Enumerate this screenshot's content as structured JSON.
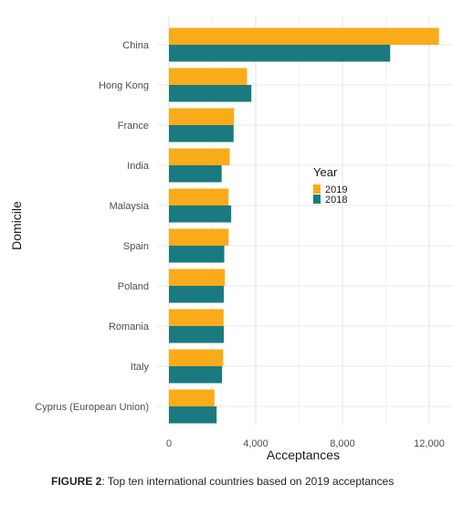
{
  "chart_data": {
    "type": "bar",
    "orientation": "horizontal",
    "categories": [
      "China",
      "Hong Kong",
      "France",
      "India",
      "Malaysia",
      "Spain",
      "Poland",
      "Romania",
      "Italy",
      "Cyprus (European Union)"
    ],
    "series": [
      {
        "name": "2019",
        "color": "#f9ab1a",
        "values": [
          12450,
          3600,
          3000,
          2800,
          2750,
          2750,
          2580,
          2520,
          2500,
          2100
        ]
      },
      {
        "name": "2018",
        "color": "#1a7a80",
        "values": [
          10200,
          3800,
          2980,
          2430,
          2870,
          2550,
          2530,
          2530,
          2450,
          2200
        ]
      }
    ],
    "xlabel": "Acceptances",
    "ylabel": "Domicile",
    "xlim": [
      0,
      13000
    ],
    "xticks": [
      0,
      4000,
      8000,
      12000
    ],
    "xtick_labels": [
      "0",
      "4,000",
      "8,000",
      "12,000"
    ],
    "legend": {
      "title": "Year",
      "entries": [
        "2019",
        "2018"
      ],
      "placement": "right"
    },
    "grid": true
  },
  "caption": {
    "label": "FIGURE 2",
    "text": ": Top ten international countries based on 2019 acceptances"
  }
}
